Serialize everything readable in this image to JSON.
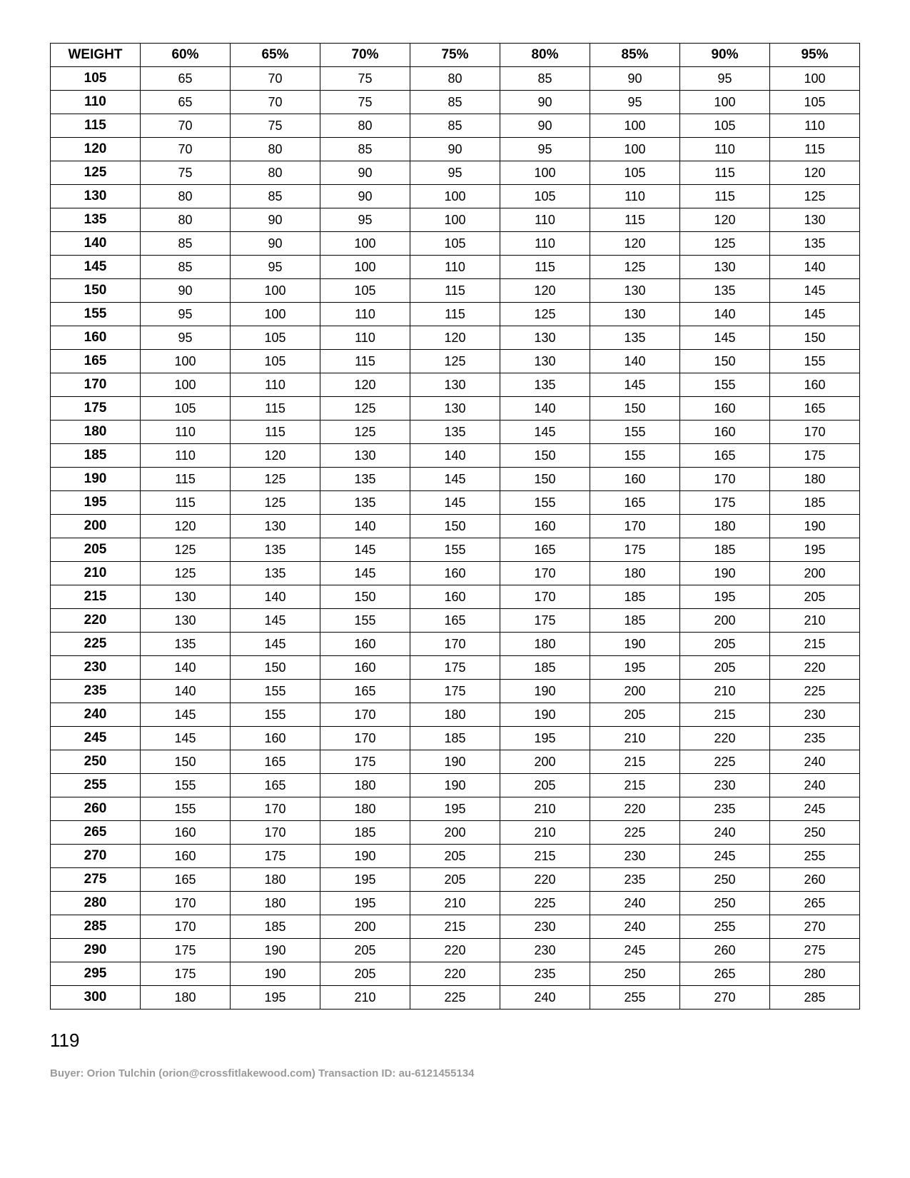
{
  "table": {
    "type": "table",
    "header_label": "WEIGHT",
    "columns": [
      "60%",
      "65%",
      "70%",
      "75%",
      "80%",
      "85%",
      "90%",
      "95%"
    ],
    "weights": [
      105,
      110,
      115,
      120,
      125,
      130,
      135,
      140,
      145,
      150,
      155,
      160,
      165,
      170,
      175,
      180,
      185,
      190,
      195,
      200,
      205,
      210,
      215,
      220,
      225,
      230,
      235,
      240,
      245,
      250,
      255,
      260,
      265,
      270,
      275,
      280,
      285,
      290,
      295,
      300
    ],
    "rows": [
      [
        65,
        70,
        75,
        80,
        85,
        90,
        95,
        100
      ],
      [
        65,
        70,
        75,
        85,
        90,
        95,
        100,
        105
      ],
      [
        70,
        75,
        80,
        85,
        90,
        100,
        105,
        110
      ],
      [
        70,
        80,
        85,
        90,
        95,
        100,
        110,
        115
      ],
      [
        75,
        80,
        90,
        95,
        100,
        105,
        115,
        120
      ],
      [
        80,
        85,
        90,
        100,
        105,
        110,
        115,
        125
      ],
      [
        80,
        90,
        95,
        100,
        110,
        115,
        120,
        130
      ],
      [
        85,
        90,
        100,
        105,
        110,
        120,
        125,
        135
      ],
      [
        85,
        95,
        100,
        110,
        115,
        125,
        130,
        140
      ],
      [
        90,
        100,
        105,
        115,
        120,
        130,
        135,
        145
      ],
      [
        95,
        100,
        110,
        115,
        125,
        130,
        140,
        145
      ],
      [
        95,
        105,
        110,
        120,
        130,
        135,
        145,
        150
      ],
      [
        100,
        105,
        115,
        125,
        130,
        140,
        150,
        155
      ],
      [
        100,
        110,
        120,
        130,
        135,
        145,
        155,
        160
      ],
      [
        105,
        115,
        125,
        130,
        140,
        150,
        160,
        165
      ],
      [
        110,
        115,
        125,
        135,
        145,
        155,
        160,
        170
      ],
      [
        110,
        120,
        130,
        140,
        150,
        155,
        165,
        175
      ],
      [
        115,
        125,
        135,
        145,
        150,
        160,
        170,
        180
      ],
      [
        115,
        125,
        135,
        145,
        155,
        165,
        175,
        185
      ],
      [
        120,
        130,
        140,
        150,
        160,
        170,
        180,
        190
      ],
      [
        125,
        135,
        145,
        155,
        165,
        175,
        185,
        195
      ],
      [
        125,
        135,
        145,
        160,
        170,
        180,
        190,
        200
      ],
      [
        130,
        140,
        150,
        160,
        170,
        185,
        195,
        205
      ],
      [
        130,
        145,
        155,
        165,
        175,
        185,
        200,
        210
      ],
      [
        135,
        145,
        160,
        170,
        180,
        190,
        205,
        215
      ],
      [
        140,
        150,
        160,
        175,
        185,
        195,
        205,
        220
      ],
      [
        140,
        155,
        165,
        175,
        190,
        200,
        210,
        225
      ],
      [
        145,
        155,
        170,
        180,
        190,
        205,
        215,
        230
      ],
      [
        145,
        160,
        170,
        185,
        195,
        210,
        220,
        235
      ],
      [
        150,
        165,
        175,
        190,
        200,
        215,
        225,
        240
      ],
      [
        155,
        165,
        180,
        190,
        205,
        215,
        230,
        240
      ],
      [
        155,
        170,
        180,
        195,
        210,
        220,
        235,
        245
      ],
      [
        160,
        170,
        185,
        200,
        210,
        225,
        240,
        250
      ],
      [
        160,
        175,
        190,
        205,
        215,
        230,
        245,
        255
      ],
      [
        165,
        180,
        195,
        205,
        220,
        235,
        250,
        260
      ],
      [
        170,
        180,
        195,
        210,
        225,
        240,
        250,
        265
      ],
      [
        170,
        185,
        200,
        215,
        230,
        240,
        255,
        270
      ],
      [
        175,
        190,
        205,
        220,
        230,
        245,
        260,
        275
      ],
      [
        175,
        190,
        205,
        220,
        235,
        250,
        265,
        280
      ],
      [
        180,
        195,
        210,
        225,
        240,
        255,
        270,
        285
      ]
    ],
    "border_color": "#000000",
    "background_color": "#ffffff",
    "header_fontsize": 19,
    "cell_fontsize": 18
  },
  "page_number": "119",
  "footer_text": "Buyer: Orion Tulchin (orion@crossfitlakewood.com) Transaction ID: au-6121455134"
}
